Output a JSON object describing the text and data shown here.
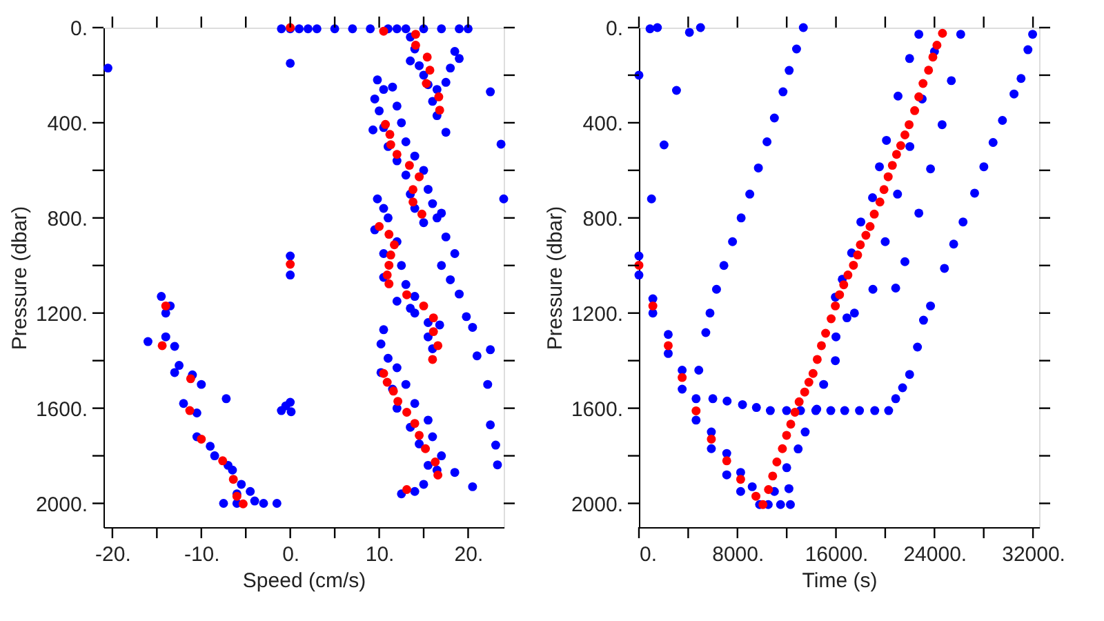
{
  "chart_data": [
    {
      "type": "scatter",
      "xlabel": "Speed (cm/s)",
      "ylabel": "Pressure (dbar)",
      "marker": "circle",
      "xlim": [
        -21,
        24
      ],
      "ylim": [
        2100,
        0
      ],
      "xticks": [
        {
          "value": -20,
          "label": "-20."
        },
        {
          "value": -15,
          "label": null
        },
        {
          "value": -10,
          "label": "-10."
        },
        {
          "value": -5,
          "label": null
        },
        {
          "value": 0,
          "label": "0."
        },
        {
          "value": 5,
          "label": null
        },
        {
          "value": 10,
          "label": "10."
        },
        {
          "value": 15,
          "label": null
        },
        {
          "value": 20,
          "label": "20."
        }
      ],
      "yticks": [
        {
          "value": 0,
          "label": "0."
        },
        {
          "value": 200,
          "label": null
        },
        {
          "value": 400,
          "label": "400."
        },
        {
          "value": 600,
          "label": null
        },
        {
          "value": 800,
          "label": "800."
        },
        {
          "value": 1000,
          "label": null
        },
        {
          "value": 1200,
          "label": "1200."
        },
        {
          "value": 1400,
          "label": null
        },
        {
          "value": 1600,
          "label": "1600."
        },
        {
          "value": 1800,
          "label": null
        },
        {
          "value": 2000,
          "label": "2000."
        }
      ],
      "series": [
        {
          "color": "#0000ff",
          "x": [
            -1,
            0,
            1,
            2,
            3,
            5,
            7,
            9,
            11,
            12,
            13,
            15,
            17,
            19,
            20,
            -20.5,
            0,
            13.5,
            14,
            13.5,
            14.5,
            15,
            15.5,
            16.5,
            17.5,
            18,
            19,
            18.5,
            16,
            16.5,
            17.5,
            22.5,
            23.7,
            24,
            9.8,
            10.5,
            11.5,
            9.5,
            10,
            12,
            9.3,
            10.5,
            12.5,
            11,
            13,
            12,
            14,
            13,
            15,
            13.5,
            15.5,
            14,
            16,
            15,
            16.5,
            17,
            9.8,
            10.5,
            11,
            9.5,
            12,
            10.5,
            12.5,
            10.5,
            13,
            12,
            14,
            14,
            15.5,
            15.5,
            16.8,
            13.5,
            16,
            17,
            18,
            19,
            17.5,
            18.5,
            19.8,
            20.5,
            22.5,
            21,
            22.2,
            22.5,
            23.1,
            23.3,
            10.5,
            10.2,
            11,
            10.2,
            12,
            11.5,
            13,
            12,
            14,
            13.5,
            15.5,
            14.5,
            16,
            15.5,
            17,
            16.5,
            18.5,
            20.5,
            12.5,
            14,
            15,
            -14.5,
            -13.5,
            -14,
            -16,
            -14,
            -13,
            -12.5,
            -11,
            -10,
            -12,
            -10.5,
            -13,
            -10.5,
            -9,
            -8.5,
            -7,
            -6.5,
            -5.5,
            -4.5,
            -6,
            -4,
            -3,
            -1.5,
            -7.5,
            -6,
            -7.2,
            0,
            0,
            -0.5,
            -1,
            0,
            0.1
          ],
          "values": [
            5,
            5,
            5,
            5,
            5,
            5,
            5,
            5,
            5,
            5,
            5,
            5,
            5,
            5,
            5,
            170,
            150,
            40,
            90,
            140,
            160,
            200,
            240,
            260,
            230,
            170,
            130,
            100,
            310,
            370,
            440,
            270,
            490,
            720,
            220,
            260,
            250,
            300,
            350,
            330,
            430,
            420,
            400,
            500,
            480,
            560,
            540,
            620,
            600,
            700,
            680,
            760,
            740,
            820,
            800,
            780,
            720,
            760,
            800,
            850,
            900,
            950,
            1000,
            1050,
            1080,
            1150,
            1130,
            1200,
            1240,
            1300,
            1250,
            1180,
            1350,
            1000,
            1060,
            1120,
            880,
            950,
            1215,
            1260,
            1354,
            1380,
            1500,
            1670,
            1755,
            1838,
            1270,
            1330,
            1390,
            1450,
            1430,
            1520,
            1500,
            1600,
            1580,
            1680,
            1650,
            1750,
            1720,
            1840,
            1800,
            1860,
            1870,
            1930,
            1960,
            1950,
            1920,
            1130,
            1170,
            1200,
            1320,
            1300,
            1340,
            1420,
            1460,
            1500,
            1580,
            1620,
            1450,
            1720,
            1760,
            1800,
            1840,
            1860,
            1920,
            1950,
            1960,
            1990,
            2000,
            2000,
            2000,
            2000,
            1560,
            960,
            1040,
            1590,
            1610,
            1575,
            1615
          ]
        },
        {
          "color": "#ff0000",
          "x": [
            0,
            10.5,
            14.1,
            14.1,
            15.4,
            15.7,
            15.3,
            16.7,
            16.8,
            10.7,
            11.2,
            11.3,
            12,
            13.4,
            14.5,
            13.8,
            13.8,
            14.8,
            10,
            11.1,
            11.7,
            11.3,
            11.1,
            10.9,
            11.1,
            13.1,
            15,
            16.1,
            16.1,
            16.6,
            16,
            10.5,
            10.9,
            11.6,
            12.1,
            13.1,
            14,
            14.5,
            15.2,
            16.3,
            16.6,
            13.1,
            -14.4,
            -11.2,
            -11.3,
            -10,
            -7.6,
            -6.4,
            -6,
            -5.3,
            -14,
            0
          ],
          "values": [
            0,
            15,
            28,
            74,
            124,
            179,
            235,
            291,
            347,
            407,
            449,
            492,
            533,
            579,
            627,
            681,
            733,
            784,
            836,
            869,
            913,
            956,
            999,
            1040,
            1077,
            1123,
            1170,
            1220,
            1278,
            1337,
            1395,
            1454,
            1491,
            1528,
            1571,
            1617,
            1664,
            1714,
            1770,
            1826,
            1881,
            1942,
            1337,
            1476,
            1610,
            1730,
            1821,
            1899,
            1970,
            2002,
            1170,
            995
          ]
        }
      ]
    },
    {
      "type": "scatter",
      "xlabel": "Time (s)",
      "ylabel": "Pressure (dbar)",
      "marker": "circle",
      "xlim": [
        0,
        32500
      ],
      "ylim": [
        2100,
        0
      ],
      "xticks": [
        {
          "value": 0,
          "label": "0."
        },
        {
          "value": 4000,
          "label": null
        },
        {
          "value": 8000,
          "label": "8000."
        },
        {
          "value": 12000,
          "label": null
        },
        {
          "value": 16000,
          "label": "16000."
        },
        {
          "value": 20000,
          "label": null
        },
        {
          "value": 24000,
          "label": "24000."
        },
        {
          "value": 28000,
          "label": null
        },
        {
          "value": 32000,
          "label": "32000."
        }
      ],
      "yticks": [
        {
          "value": 0,
          "label": "0."
        },
        {
          "value": 200,
          "label": null
        },
        {
          "value": 400,
          "label": "400."
        },
        {
          "value": 600,
          "label": null
        },
        {
          "value": 800,
          "label": "800."
        },
        {
          "value": 1000,
          "label": null
        },
        {
          "value": 1200,
          "label": "1200."
        },
        {
          "value": 1400,
          "label": null
        },
        {
          "value": 1600,
          "label": "1600."
        },
        {
          "value": 1800,
          "label": null
        },
        {
          "value": 2000,
          "label": "2000."
        }
      ],
      "series": [
        {
          "color": "#0000ff",
          "x": [
            0,
            900,
            1500,
            4100,
            5000,
            3050,
            2040,
            1020,
            0,
            0,
            1130,
            1130,
            2380,
            2380,
            3510,
            3510,
            4640,
            4640,
            5880,
            5880,
            7130,
            7130,
            8260,
            8260,
            9200,
            9800,
            10500,
            11500,
            12300,
            13350,
            12800,
            12200,
            11700,
            11000,
            10400,
            9700,
            9000,
            8300,
            7600,
            6900,
            6300,
            5770,
            5430,
            4860,
            6000,
            7160,
            8410,
            9540,
            10670,
            11990,
            13120,
            14360,
            15580,
            16710,
            17910,
            19150,
            20280,
            20850,
            21410,
            21980,
            22620,
            23110,
            23680,
            24810,
            25560,
            26320,
            27260,
            28010,
            28760,
            29520,
            30460,
            31030,
            31590,
            31970,
            22730,
            21980,
            21040,
            20100,
            19530,
            18970,
            18020,
            17270,
            16510,
            15950,
            26130,
            25370,
            24620,
            23680,
            22730,
            21600,
            20850,
            16890,
            15950,
            14440,
            12930,
            12180,
            24000,
            23000,
            22000,
            21000,
            20000,
            19000,
            17500,
            16000,
            15000,
            13500,
            12000,
            11000
          ],
          "values": [
            200,
            5,
            0,
            20,
            0,
            264,
            493,
            720,
            960,
            1040,
            1140,
            1200,
            1290,
            1370,
            1440,
            1520,
            1560,
            1650,
            1700,
            1770,
            1790,
            1880,
            1870,
            1950,
            1930,
            2005,
            2005,
            2005,
            2005,
            0,
            90,
            180,
            270,
            380,
            480,
            590,
            700,
            800,
            900,
            1000,
            1100,
            1200,
            1282,
            1440,
            1560,
            1570,
            1585,
            1597,
            1610,
            1610,
            1610,
            1610,
            1610,
            1610,
            1610,
            1610,
            1610,
            1560,
            1514,
            1458,
            1343,
            1230,
            1170,
            1012,
            910,
            817,
            696,
            585,
            483,
            390,
            279,
            214,
            93,
            28,
            28,
            130,
            288,
            474,
            585,
            715,
            817,
            947,
            1058,
            1133,
            28,
            223,
            408,
            594,
            780,
            984,
            1095,
            1220,
            1400,
            1604,
            1771,
            1938,
            100,
            300,
            500,
            700,
            900,
            1100,
            1200,
            1300,
            1500,
            1700,
            1850,
            1950
          ]
        },
        {
          "color": "#ff0000",
          "x": [
            24650,
            24200,
            23870,
            23520,
            23070,
            22730,
            22390,
            21940,
            21600,
            21260,
            20920,
            20580,
            20240,
            19900,
            19570,
            19110,
            18770,
            18430,
            17980,
            17760,
            17420,
            16970,
            16630,
            16290,
            15950,
            0,
            1130,
            15610,
            15160,
            14820,
            14480,
            14140,
            13800,
            13460,
            13010,
            12670,
            12330,
            11990,
            11650,
            11200,
            10860,
            10520,
            10070,
            9500,
            8260,
            7130,
            5880,
            4640,
            3510,
            2380
          ],
          "values": [
            24,
            74,
            124,
            179,
            235,
            291,
            349,
            408,
            451,
            496,
            533,
            579,
            627,
            681,
            733,
            784,
            836,
            873,
            913,
            956,
            999,
            1040,
            1081,
            1123,
            1170,
            999,
            1170,
            1224,
            1285,
            1337,
            1395,
            1454,
            1491,
            1532,
            1573,
            1617,
            1667,
            1714,
            1770,
            1826,
            1885,
            1942,
            2005,
            1970,
            1899,
            1821,
            1730,
            1611,
            1471,
            1337
          ]
        }
      ]
    }
  ]
}
